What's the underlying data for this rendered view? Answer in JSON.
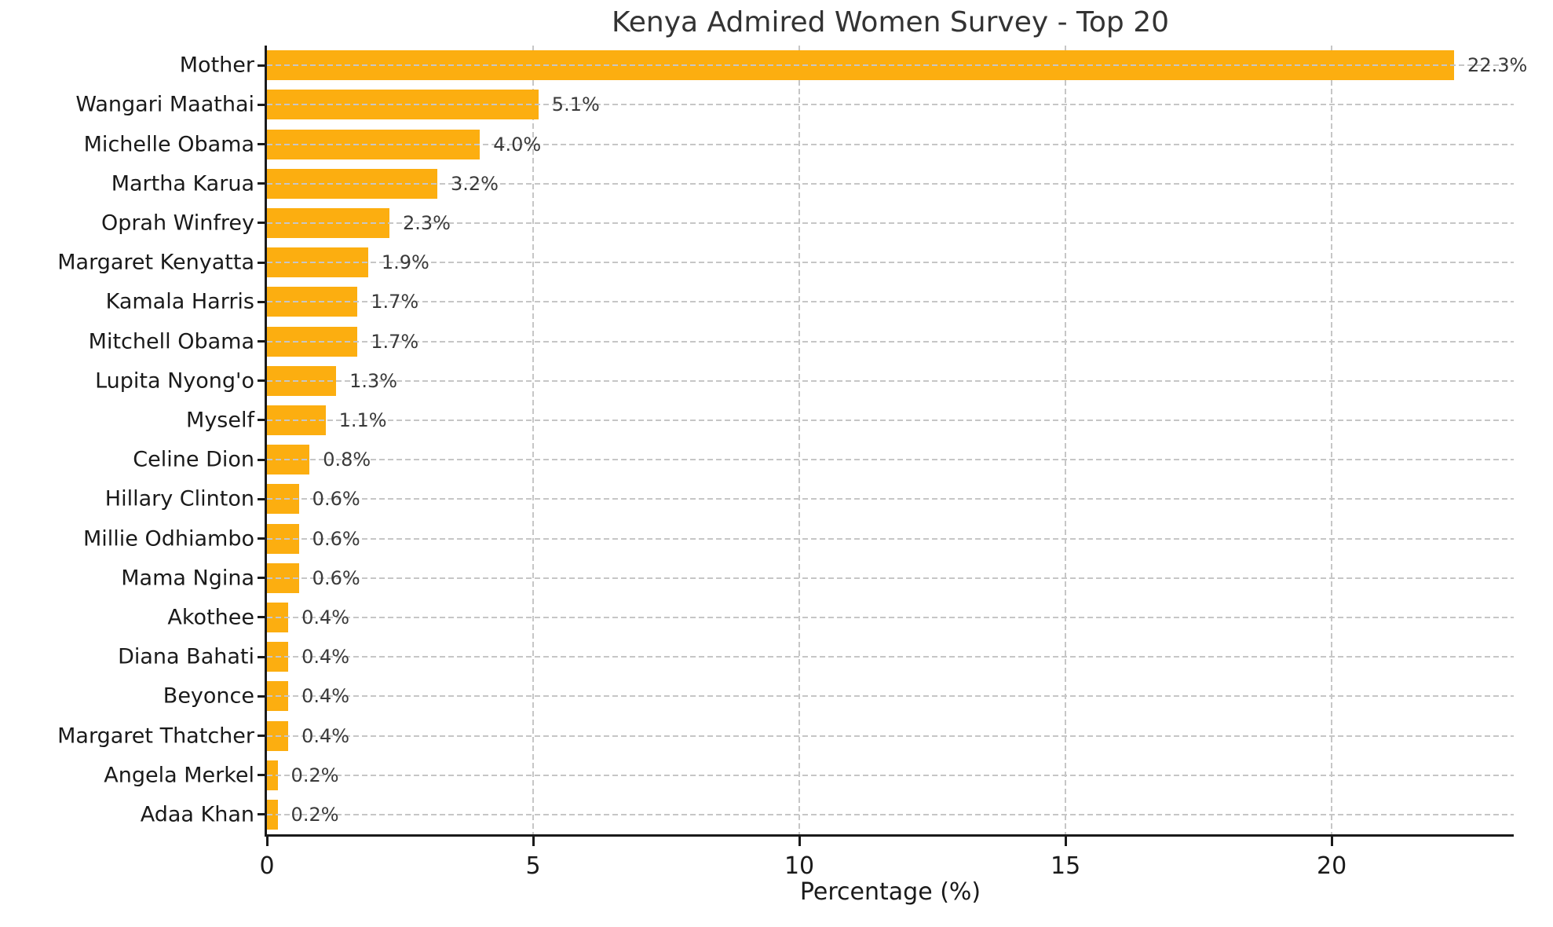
{
  "title": "Kenya Admired Women Survey - Top 20",
  "chart_data": {
    "type": "bar",
    "orientation": "horizontal",
    "title": "Kenya Admired Women Survey - Top 20",
    "xlabel": "Percentage (%)",
    "ylabel": "",
    "categories": [
      "Mother",
      "Wangari Maathai",
      "Michelle Obama",
      "Martha Karua",
      "Oprah Winfrey",
      "Margaret Kenyatta",
      "Kamala Harris",
      "Mitchell Obama",
      "Lupita Nyong'o",
      "Myself",
      "Celine Dion",
      "Hillary Clinton",
      "Millie Odhiambo",
      "Mama Ngina",
      "Akothee",
      "Diana Bahati",
      "Beyonce",
      "Margaret Thatcher",
      "Angela Merkel",
      "Adaa Khan"
    ],
    "values": [
      22.3,
      5.1,
      4.0,
      3.2,
      2.3,
      1.9,
      1.7,
      1.7,
      1.3,
      1.1,
      0.8,
      0.6,
      0.6,
      0.6,
      0.4,
      0.4,
      0.4,
      0.4,
      0.2,
      0.2
    ],
    "value_labels": [
      "22.3%",
      "5.1%",
      "4.0%",
      "3.2%",
      "2.3%",
      "1.9%",
      "1.7%",
      "1.7%",
      "1.3%",
      "1.1%",
      "0.8%",
      "0.6%",
      "0.6%",
      "0.6%",
      "0.4%",
      "0.4%",
      "0.4%",
      "0.4%",
      "0.2%",
      "0.2%"
    ],
    "xticks": [
      "0",
      "5",
      "10",
      "15",
      "20"
    ],
    "xtick_values": [
      0,
      5,
      10,
      15,
      20
    ],
    "xlim": [
      0,
      23.42
    ],
    "grid": true,
    "legend_position": "none",
    "bar_color": "#fcae10",
    "grid_color": "#c6c6c6",
    "axis_color": "#1a1a1a",
    "title_color": "#333333",
    "value_label_color": "#3a3a3a"
  }
}
